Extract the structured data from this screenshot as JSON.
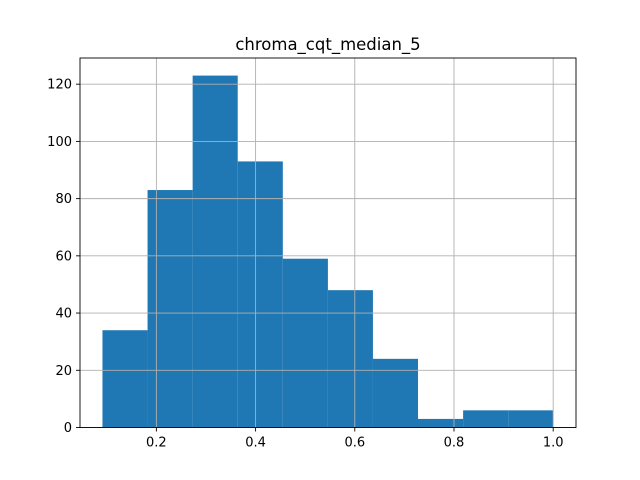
{
  "chart_data": {
    "type": "histogram",
    "title": "chroma_cqt_median_5",
    "xlabel": "",
    "ylabel": "",
    "bin_edges": [
      0.0913,
      0.1822,
      0.2731,
      0.364,
      0.4549,
      0.5458,
      0.6366,
      0.7275,
      0.8184,
      0.9093,
      1.0002
    ],
    "counts": [
      34,
      83,
      123,
      93,
      59,
      48,
      24,
      3,
      6,
      6
    ],
    "xlim": [
      0.046,
      1.046
    ],
    "ylim": [
      0,
      129.15
    ],
    "xticks": [
      0.2,
      0.4,
      0.6,
      0.8,
      1.0
    ],
    "xtick_labels": [
      "0.2",
      "0.4",
      "0.6",
      "0.8",
      "1.0"
    ],
    "yticks": [
      0,
      20,
      40,
      60,
      80,
      100,
      120
    ],
    "ytick_labels": [
      "0",
      "20",
      "40",
      "60",
      "80",
      "100",
      "120"
    ],
    "grid": true,
    "bar_color": "#1f77b4"
  }
}
